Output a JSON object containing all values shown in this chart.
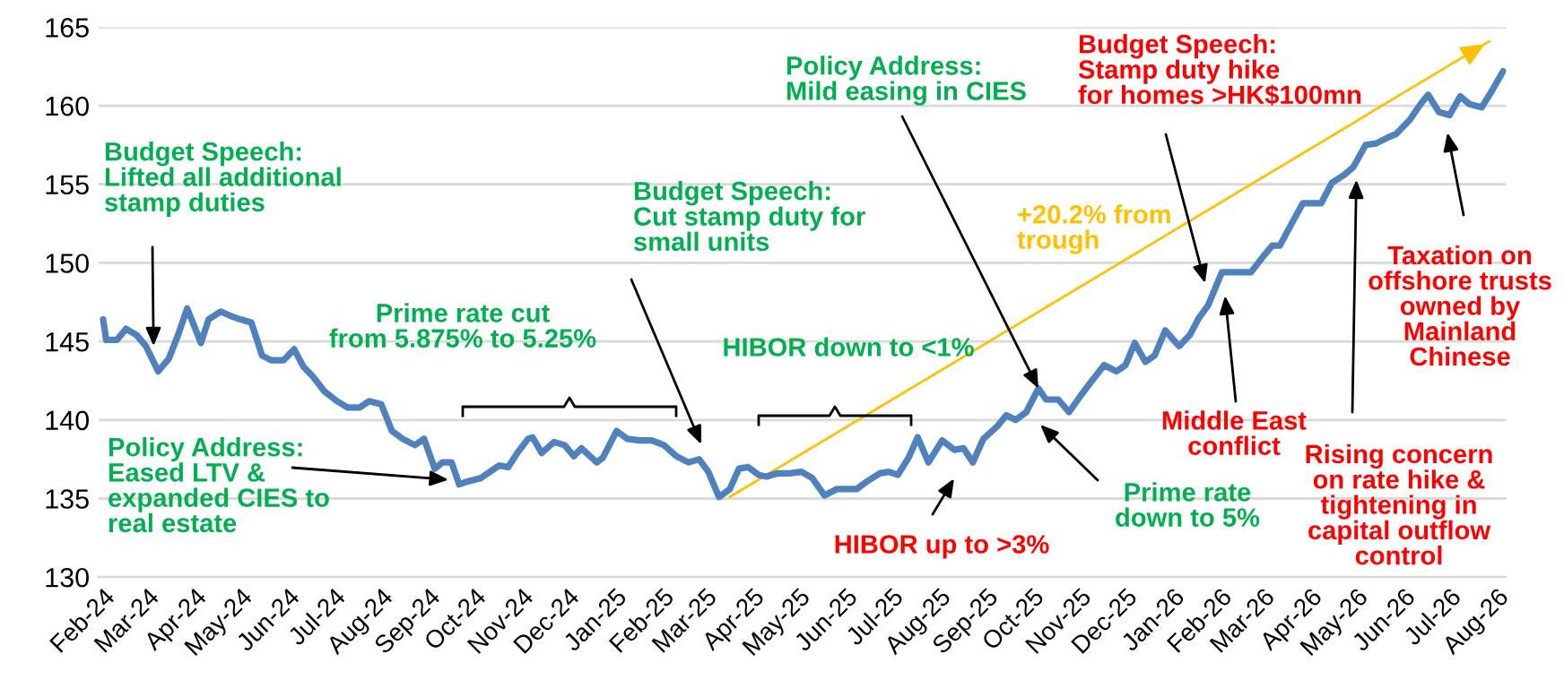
{
  "chart_data": {
    "type": "line",
    "ylim": [
      130,
      165
    ],
    "yticks": [
      130,
      135,
      140,
      145,
      150,
      155,
      160,
      165
    ],
    "xlim": [
      "2024-01-29",
      "2026-08-07"
    ],
    "xticks": [
      {
        "value": "2024-02-01",
        "label": "Feb-24"
      },
      {
        "value": "2024-03-01",
        "label": "Mar-24"
      },
      {
        "value": "2024-04-01",
        "label": "Apr-24"
      },
      {
        "value": "2024-05-01",
        "label": "May-24"
      },
      {
        "value": "2024-06-01",
        "label": "Jun-24"
      },
      {
        "value": "2024-07-01",
        "label": "Jul-24"
      },
      {
        "value": "2024-08-01",
        "label": "Aug-24"
      },
      {
        "value": "2024-09-01",
        "label": "Sep-24"
      },
      {
        "value": "2024-10-01",
        "label": "Oct-24"
      },
      {
        "value": "2024-11-01",
        "label": "Nov-24"
      },
      {
        "value": "2024-12-01",
        "label": "Dec-24"
      },
      {
        "value": "2025-01-01",
        "label": "Jan-25"
      },
      {
        "value": "2025-02-01",
        "label": "Feb-25"
      },
      {
        "value": "2025-03-01",
        "label": "Mar-25"
      },
      {
        "value": "2025-04-01",
        "label": "Apr-25"
      },
      {
        "value": "2025-05-01",
        "label": "May-25"
      },
      {
        "value": "2025-06-01",
        "label": "Jun-25"
      },
      {
        "value": "2025-07-01",
        "label": "Jul-25"
      },
      {
        "value": "2025-08-01",
        "label": "Aug-25"
      },
      {
        "value": "2025-09-01",
        "label": "Sep-25"
      },
      {
        "value": "2025-10-01",
        "label": "Oct-25"
      },
      {
        "value": "2025-11-01",
        "label": "Nov-25"
      },
      {
        "value": "2025-12-01",
        "label": "Dec-25"
      },
      {
        "value": "2026-01-01",
        "label": "Jan-26"
      },
      {
        "value": "2026-02-01",
        "label": "Feb-26"
      },
      {
        "value": "2026-03-01",
        "label": "Mar-26"
      },
      {
        "value": "2026-04-01",
        "label": "Apr-26"
      },
      {
        "value": "2026-05-01",
        "label": "May-26"
      },
      {
        "value": "2026-06-01",
        "label": "Jun-26"
      },
      {
        "value": "2026-07-01",
        "label": "Jul-26"
      },
      {
        "value": "2026-08-01",
        "label": "Aug-26"
      }
    ],
    "grid": "y",
    "series": [
      {
        "color": "#4f81bd",
        "x": [
          "2024-02-01",
          "2024-02-03",
          "2024-02-10",
          "2024-02-16",
          "2024-02-23",
          "2024-02-29",
          "2024-03-08",
          "2024-03-15",
          "2024-03-21",
          "2024-03-27",
          "2024-04-05",
          "2024-04-10",
          "2024-04-18",
          "2024-04-25",
          "2024-05-01",
          "2024-05-08",
          "2024-05-15",
          "2024-05-21",
          "2024-05-29",
          "2024-06-05",
          "2024-06-11",
          "2024-06-17",
          "2024-06-25",
          "2024-07-03",
          "2024-07-10",
          "2024-07-18",
          "2024-07-24",
          "2024-08-01",
          "2024-08-08",
          "2024-08-15",
          "2024-08-23",
          "2024-08-29",
          "2024-09-05",
          "2024-09-10",
          "2024-09-16",
          "2024-09-21",
          "2024-09-27",
          "2024-10-05",
          "2024-10-11",
          "2024-10-17",
          "2024-10-23",
          "2024-10-29",
          "2024-11-05",
          "2024-11-08",
          "2024-11-14",
          "2024-11-22",
          "2024-11-29",
          "2024-12-05",
          "2024-12-10",
          "2024-12-20",
          "2024-12-24",
          "2025-01-02",
          "2025-01-09",
          "2025-01-17",
          "2025-01-25",
          "2025-02-02",
          "2025-02-10",
          "2025-02-18",
          "2025-02-25",
          "2025-03-03",
          "2025-03-10",
          "2025-03-17",
          "2025-03-23",
          "2025-03-29",
          "2025-04-05",
          "2025-04-10",
          "2025-04-17",
          "2025-04-25",
          "2025-05-03",
          "2025-05-10",
          "2025-05-18",
          "2025-05-26",
          "2025-06-08",
          "2025-06-15",
          "2025-06-23",
          "2025-06-29",
          "2025-07-05",
          "2025-07-12",
          "2025-07-18",
          "2025-07-25",
          "2025-08-03",
          "2025-08-11",
          "2025-08-17",
          "2025-08-23",
          "2025-08-30",
          "2025-09-08",
          "2025-09-14",
          "2025-09-20",
          "2025-09-27",
          "2025-10-05",
          "2025-10-10",
          "2025-10-18",
          "2025-10-25",
          "2025-11-02",
          "2025-11-09",
          "2025-11-17",
          "2025-11-25",
          "2025-12-01",
          "2025-12-07",
          "2025-12-14",
          "2025-12-20",
          "2025-12-27",
          "2026-01-05",
          "2026-01-12",
          "2026-01-18",
          "2026-01-24",
          "2026-02-02",
          "2026-02-10",
          "2026-02-21",
          "2026-03-01",
          "2026-03-07",
          "2026-03-12",
          "2026-03-18",
          "2026-03-27",
          "2026-04-08",
          "2026-04-15",
          "2026-04-23",
          "2026-04-29",
          "2026-05-07",
          "2026-05-14",
          "2026-05-22",
          "2026-05-27",
          "2026-06-05",
          "2026-06-12",
          "2026-06-17",
          "2026-06-24",
          "2026-07-01",
          "2026-07-08",
          "2026-07-14",
          "2026-07-22",
          "2026-07-29",
          "2026-08-05"
        ],
        "values": [
          146.4,
          145.1,
          145.1,
          145.8,
          145.4,
          144.7,
          143.1,
          143.9,
          145.4,
          147.1,
          144.9,
          146.4,
          146.9,
          146.6,
          146.4,
          146.2,
          144.1,
          143.8,
          143.8,
          144.5,
          143.4,
          142.8,
          141.8,
          141.2,
          140.8,
          140.8,
          141.2,
          141.0,
          139.3,
          138.8,
          138.4,
          138.8,
          136.9,
          137.3,
          137.3,
          135.9,
          136.1,
          136.3,
          136.7,
          137.1,
          137.0,
          137.9,
          138.8,
          138.9,
          137.9,
          138.6,
          138.4,
          137.7,
          138.2,
          137.3,
          137.6,
          139.3,
          138.8,
          138.7,
          138.7,
          138.4,
          137.7,
          137.3,
          137.5,
          136.7,
          135.1,
          135.6,
          136.9,
          137.0,
          136.5,
          136.4,
          136.6,
          136.6,
          136.7,
          136.3,
          135.2,
          135.6,
          135.6,
          136.1,
          136.6,
          136.7,
          136.5,
          137.6,
          138.9,
          137.3,
          138.7,
          138.1,
          138.2,
          137.3,
          138.8,
          139.6,
          140.3,
          140.0,
          140.5,
          142.0,
          141.3,
          141.3,
          140.5,
          141.6,
          142.5,
          143.5,
          143.1,
          143.5,
          144.9,
          143.7,
          144.1,
          145.7,
          144.7,
          145.4,
          146.5,
          147.3,
          149.4,
          149.4,
          149.4,
          150.4,
          151.1,
          151.1,
          152.2,
          153.8,
          153.8,
          155.1,
          155.6,
          156.1,
          157.5,
          157.6,
          158.0,
          158.2,
          159.1,
          160.1,
          160.7,
          159.6,
          159.4,
          160.6,
          160.1,
          159.9,
          161.0,
          162.2
        ]
      },
      {
        "color": "#ffc000",
        "x": [
          "2025-03-17",
          "2026-07-27"
        ],
        "values": [
          135.1,
          164.1
        ]
      }
    ],
    "annotations": [
      {
        "text": "Budget Speech:\nLifted all additional\nstamp duties",
        "x": "2024-03-05",
        "y": 144.7
      },
      {
        "text": "Policy Address:\nEased LTV &\nexpanded CIES to\nreal estate",
        "x": "2024-09-14",
        "y": 136.2
      },
      "Prime rate cut\nfrom 5.875% to 5.25%",
      "Budget Speech:\nCut stamp duty for\nsmall units",
      "HIBOR down to <1%",
      {
        "text": "Policy Address:\nMild easing in CIES",
        "x": "2025-10-05",
        "y": 142.0
      },
      "HIBOR up to >3%",
      "Prime rate\ndown to 5%",
      "+20.2% from\ntrough",
      {
        "text": "Budget Speech:\nStamp duty hike\nfor homes >HK$100mn",
        "x": "2026-01-22",
        "y": 148.7
      },
      "Middle East\nconflict",
      {
        "text": "Rising concern\non rate hike &\ntightening in\ncapital outflow\ncontrol",
        "x": "2026-05-01",
        "y": 155.3
      },
      "Taxation on\noffshore trusts\nowned by\nMainland\nChinese"
    ]
  }
}
